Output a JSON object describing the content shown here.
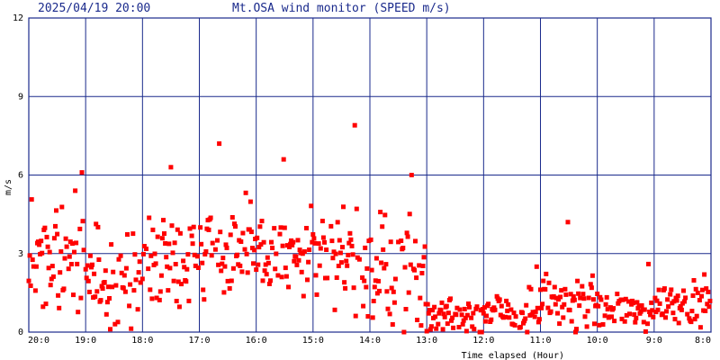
{
  "header": {
    "timestamp": "2025/04/19 20:00",
    "title": "Mt.OSA wind monitor (SPEED m/s)"
  },
  "colors": {
    "grid": "#1a2a8c",
    "points": "#ff0000",
    "background": "#ffffff"
  },
  "chart_data": {
    "type": "scatter",
    "title": "Mt.OSA wind monitor (SPEED m/s)",
    "xlabel": "Time elapsed (Hour)",
    "ylabel": "m/s",
    "x_ticks": [
      "20:0",
      "19:0",
      "18:0",
      "17:0",
      "16:0",
      "15:0",
      "14:0",
      "13:0",
      "12:0",
      "11:0",
      "10:0",
      "9:0",
      "8:0"
    ],
    "y_ticks": [
      "0",
      "3",
      "6",
      "9",
      "12"
    ],
    "ylim": [
      0,
      12
    ],
    "xlim_hours_elapsed": [
      0,
      12
    ],
    "x_direction": "time runs backwards from 20:00 (left) to 8:00 (right)",
    "grid": true,
    "sample_interval_minutes": 1,
    "hourly_profile": [
      {
        "hour": "20:0-19:0",
        "mean": 2.8,
        "spread": 1.6,
        "max": 6.1
      },
      {
        "hour": "19:0-18:0",
        "mean": 2.0,
        "spread": 1.5,
        "max": 5.0
      },
      {
        "hour": "18:0-17:0",
        "mean": 2.9,
        "spread": 1.5,
        "max": 6.3
      },
      {
        "hour": "17:0-16:0",
        "mean": 3.2,
        "spread": 1.4,
        "max": 7.2
      },
      {
        "hour": "16:0-15:0",
        "mean": 2.8,
        "spread": 1.5,
        "max": 6.6
      },
      {
        "hour": "15:0-14:0",
        "mean": 2.7,
        "spread": 1.8,
        "max": 7.9
      },
      {
        "hour": "14:0-13:0",
        "mean": 2.3,
        "spread": 1.9,
        "max": 6.0
      },
      {
        "hour": "13:0-12:0",
        "mean": 0.7,
        "spread": 0.6,
        "max": 2.0
      },
      {
        "hour": "12:0-11:0",
        "mean": 0.7,
        "spread": 0.7,
        "max": 2.5
      },
      {
        "hour": "11:0-10:0",
        "mean": 1.1,
        "spread": 0.8,
        "max": 4.2
      },
      {
        "hour": "10:0-9:0",
        "mean": 0.8,
        "spread": 0.7,
        "max": 2.6
      },
      {
        "hour": "9:0-8:0",
        "mean": 1.1,
        "spread": 0.6,
        "max": 2.2
      }
    ]
  }
}
